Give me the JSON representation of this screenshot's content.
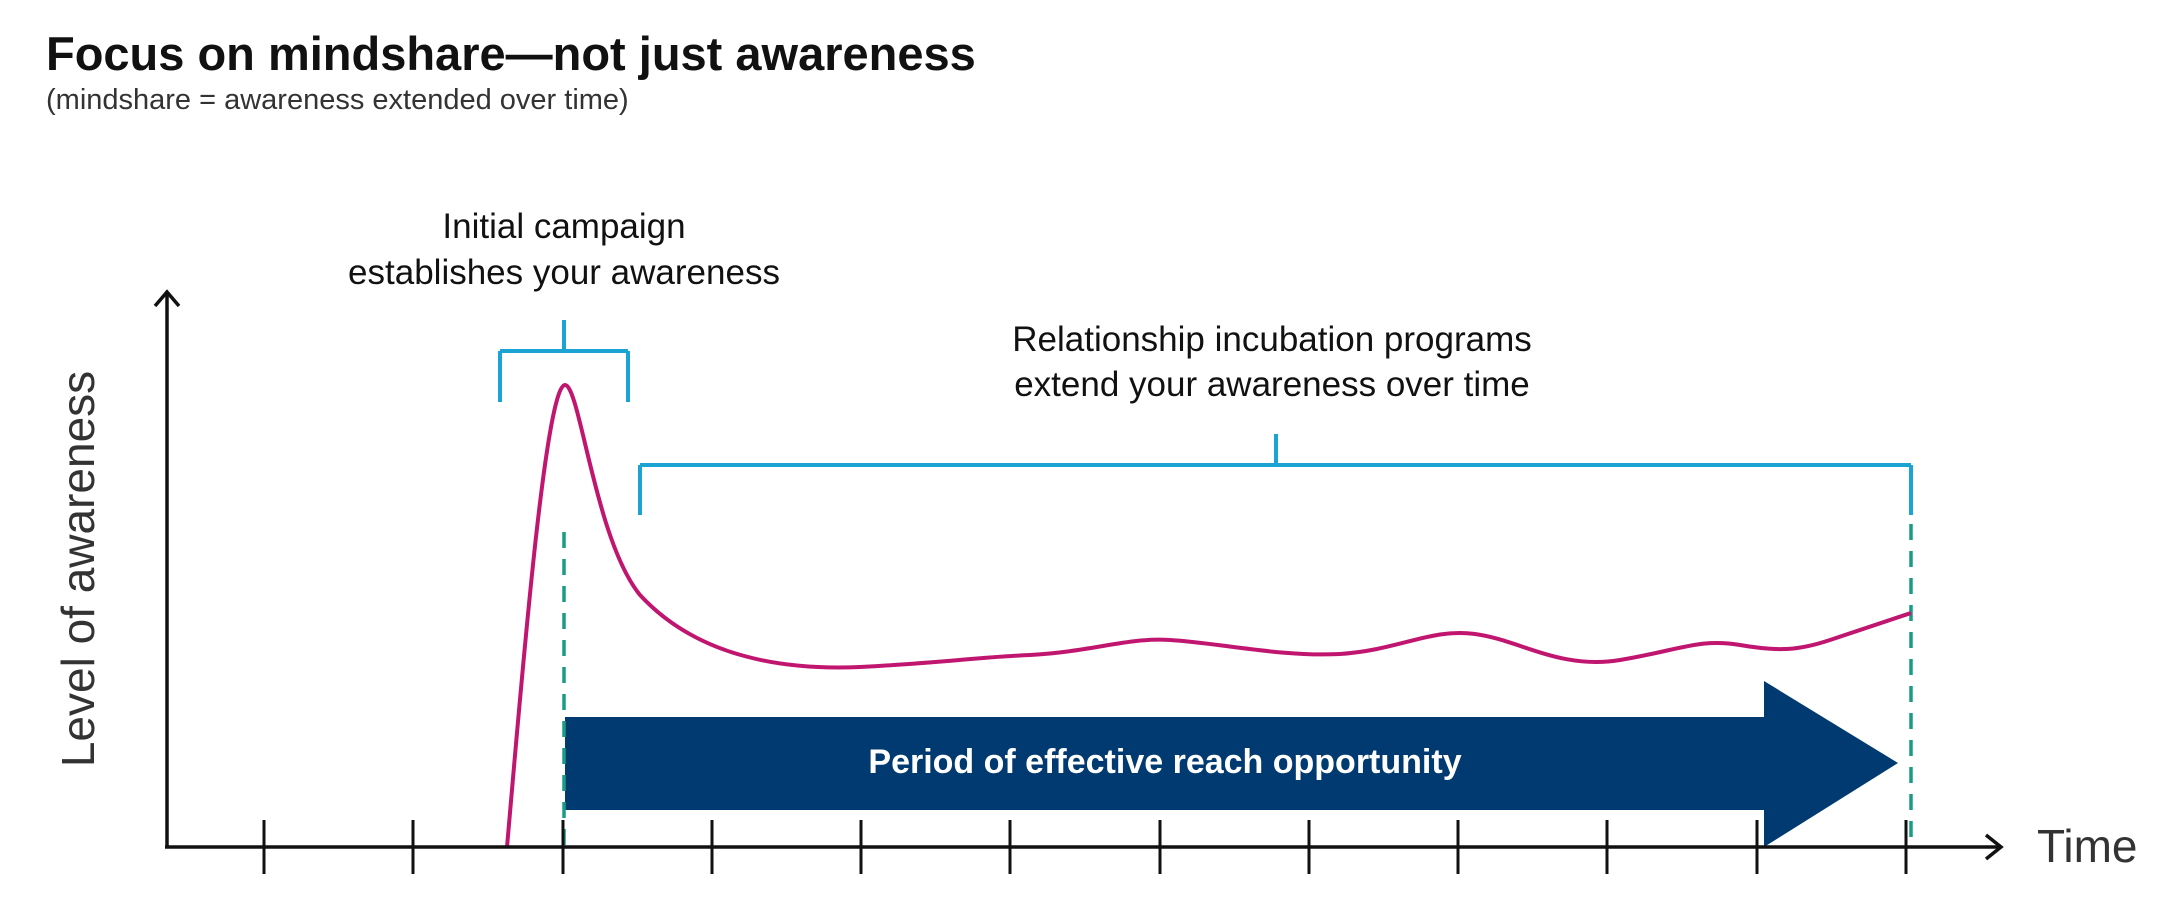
{
  "header": {
    "title": "Focus on mindshare—not just awareness",
    "subtitle": "(mindshare = awareness extended over time)"
  },
  "axes": {
    "y_label": "Level of awareness",
    "x_label": "Time"
  },
  "annotations": {
    "campaign_line1": "Initial campaign",
    "campaign_line2": "establishes your awareness",
    "incubation_line1": "Relationship incubation programs",
    "incubation_line2": "extend your awareness over time"
  },
  "arrow": {
    "label": "Period of effective reach opportunity"
  },
  "colors": {
    "curve": "#c0166f",
    "bracket": "#1ba3d3",
    "arrow_fill": "#003a70",
    "dashed": "#1a9b86",
    "axis": "#111111"
  }
}
